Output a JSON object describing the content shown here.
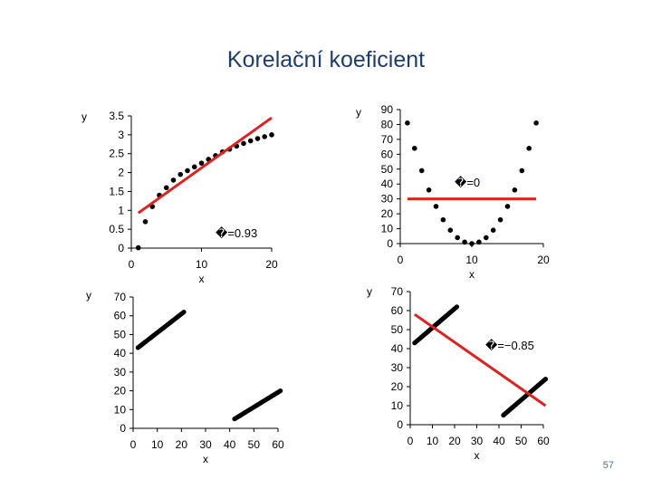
{
  "slide": {
    "title": "Korelační koeficient",
    "page_number": "57"
  },
  "colors": {
    "points": "#000000",
    "fit_line": "#dd2222",
    "axis": "#000000",
    "title": "#1f3d6b"
  },
  "chart_data": [
    {
      "type": "scatter",
      "xlabel": "x",
      "ylabel": "y",
      "xlim": [
        0,
        20
      ],
      "ylim": [
        0,
        3.5
      ],
      "x_ticks": [
        "0",
        "10",
        "20"
      ],
      "y_ticks": [
        "0",
        "0.5",
        "1",
        "1.5",
        "2",
        "2.5",
        "3",
        "3.5"
      ],
      "annotation": "�=0.93",
      "points": [
        [
          1,
          0.01
        ],
        [
          2,
          0.7
        ],
        [
          3,
          1.1
        ],
        [
          4,
          1.4
        ],
        [
          5,
          1.6
        ],
        [
          6,
          1.8
        ],
        [
          7,
          1.95
        ],
        [
          8,
          2.05
        ],
        [
          9,
          2.15
        ],
        [
          10,
          2.25
        ],
        [
          11,
          2.35
        ],
        [
          12,
          2.45
        ],
        [
          13,
          2.55
        ],
        [
          14,
          2.62
        ],
        [
          15,
          2.7
        ],
        [
          16,
          2.77
        ],
        [
          17,
          2.84
        ],
        [
          18,
          2.9
        ],
        [
          19,
          2.95
        ],
        [
          20,
          3.0
        ]
      ],
      "fit_line": [
        [
          1,
          0.93
        ],
        [
          20,
          3.45
        ]
      ]
    },
    {
      "type": "scatter",
      "xlabel": "x",
      "ylabel": "y",
      "xlim": [
        0,
        20
      ],
      "ylim": [
        0,
        90
      ],
      "x_ticks": [
        "0",
        "10",
        "20"
      ],
      "y_ticks": [
        "0",
        "10",
        "20",
        "30",
        "40",
        "50",
        "60",
        "70",
        "80",
        "90"
      ],
      "annotation": "�=0",
      "points": [
        [
          1,
          81
        ],
        [
          2,
          64
        ],
        [
          3,
          49
        ],
        [
          4,
          36
        ],
        [
          5,
          25
        ],
        [
          6,
          16
        ],
        [
          7,
          9
        ],
        [
          8,
          4
        ],
        [
          9,
          1
        ],
        [
          10,
          0
        ],
        [
          11,
          1
        ],
        [
          12,
          4
        ],
        [
          13,
          9
        ],
        [
          14,
          16
        ],
        [
          15,
          25
        ],
        [
          16,
          36
        ],
        [
          17,
          49
        ],
        [
          18,
          64
        ],
        [
          19,
          81
        ]
      ],
      "fit_line": [
        [
          1,
          30
        ],
        [
          19,
          30
        ]
      ]
    },
    {
      "type": "scatter",
      "xlabel": "x",
      "ylabel": "y",
      "xlim": [
        0,
        60
      ],
      "ylim": [
        0,
        70
      ],
      "x_ticks": [
        "0",
        "10",
        "20",
        "30",
        "40",
        "50",
        "60"
      ],
      "y_ticks": [
        "0",
        "10",
        "20",
        "30",
        "40",
        "50",
        "60",
        "70"
      ],
      "annotation": "",
      "segments": [
        {
          "x_start": 2,
          "x_end": 21,
          "y_start": 43,
          "y_end": 62
        },
        {
          "x_start": 42,
          "x_end": 61,
          "y_start": 5,
          "y_end": 20
        }
      ]
    },
    {
      "type": "scatter",
      "xlabel": "x",
      "ylabel": "y",
      "xlim": [
        0,
        60
      ],
      "ylim": [
        0,
        70
      ],
      "x_ticks": [
        "0",
        "10",
        "20",
        "30",
        "40",
        "50",
        "60"
      ],
      "y_ticks": [
        "0",
        "10",
        "20",
        "30",
        "40",
        "50",
        "60",
        "70"
      ],
      "annotation": "�=−0.85",
      "segments": [
        {
          "x_start": 2,
          "x_end": 21,
          "y_start": 43,
          "y_end": 62
        },
        {
          "x_start": 42,
          "x_end": 61,
          "y_start": 5,
          "y_end": 24
        }
      ],
      "fit_line": [
        [
          2,
          58
        ],
        [
          61,
          10
        ]
      ]
    }
  ]
}
